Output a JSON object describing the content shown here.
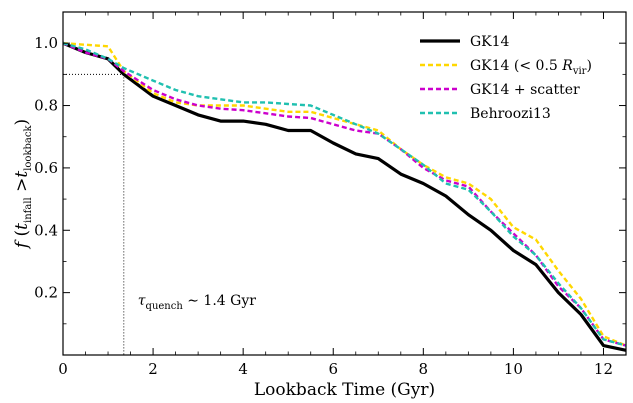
{
  "chart_data": {
    "type": "line",
    "xlabel": "Lookback Time (Gyr)",
    "ylabel": {
      "f": "f",
      "open": " (",
      "t1": "t",
      "t1_sub": "infall",
      "gt": " >",
      "t2": "t",
      "t2_sub": "lookback",
      "close": ")"
    },
    "xlim": [
      0,
      12.5
    ],
    "ylim": [
      0,
      1.1
    ],
    "xticks": [
      {
        "value": 0,
        "label": "0"
      },
      {
        "value": 2,
        "label": "2"
      },
      {
        "value": 4,
        "label": "4"
      },
      {
        "value": 6,
        "label": "6"
      },
      {
        "value": 8,
        "label": "8"
      },
      {
        "value": 10,
        "label": "10"
      },
      {
        "value": 12,
        "label": "12"
      }
    ],
    "yticks": [
      {
        "value": 0.2,
        "label": "0.2"
      },
      {
        "value": 0.4,
        "label": "0.4"
      },
      {
        "value": 0.6,
        "label": "0.6"
      },
      {
        "value": 0.8,
        "label": "0.8"
      },
      {
        "value": 1.0,
        "label": "1.0"
      }
    ],
    "grid": false,
    "legend_position": "top-right",
    "annotation": {
      "tau": "τ",
      "tau_sub": "quench",
      "rest": " ∼ 1.4 Gyr",
      "x_quench": 1.35,
      "y_level": 0.9
    },
    "series": [
      {
        "name": "GK14",
        "legend_parts": [
          "GK14"
        ],
        "color": "#000000",
        "dash": "solid",
        "x": [
          0,
          0.5,
          1.0,
          1.35,
          2.0,
          2.5,
          3.0,
          3.5,
          4.0,
          4.5,
          5.0,
          5.5,
          6.0,
          6.5,
          7.0,
          7.5,
          8.0,
          8.5,
          9.0,
          9.5,
          10.0,
          10.5,
          11.0,
          11.5,
          12.0,
          12.5
        ],
        "y": [
          1.0,
          0.97,
          0.95,
          0.9,
          0.83,
          0.8,
          0.77,
          0.75,
          0.75,
          0.74,
          0.72,
          0.72,
          0.68,
          0.645,
          0.63,
          0.58,
          0.55,
          0.51,
          0.45,
          0.4,
          0.335,
          0.29,
          0.2,
          0.13,
          0.03,
          0.015
        ]
      },
      {
        "name": "GK14 (< 0.5 R_vir)",
        "legend_parts": [
          "GK14 (",
          "< 0.5 ",
          "R",
          "vir",
          ")"
        ],
        "color": "#ffd700",
        "dash": "dashed",
        "x": [
          0,
          1.0,
          1.35,
          2.0,
          2.5,
          3.0,
          3.5,
          4.0,
          4.5,
          5.0,
          5.5,
          6.0,
          6.5,
          7.0,
          7.5,
          8.0,
          8.5,
          9.0,
          9.5,
          10.0,
          10.5,
          11.0,
          11.5,
          12.0,
          12.5
        ],
        "y": [
          1.0,
          0.99,
          0.91,
          0.84,
          0.81,
          0.8,
          0.8,
          0.8,
          0.79,
          0.78,
          0.78,
          0.76,
          0.74,
          0.72,
          0.66,
          0.61,
          0.57,
          0.55,
          0.5,
          0.41,
          0.37,
          0.27,
          0.18,
          0.06,
          0.03
        ]
      },
      {
        "name": "GK14 + scatter",
        "legend_parts": [
          "GK14 + scatter"
        ],
        "color": "#cc00cc",
        "dash": "dashed",
        "x": [
          0,
          0.5,
          1.0,
          1.35,
          2.0,
          2.5,
          3.0,
          3.5,
          4.0,
          4.5,
          5.0,
          5.5,
          6.0,
          6.5,
          7.0,
          7.5,
          8.0,
          8.5,
          9.0,
          9.5,
          10.0,
          10.5,
          11.0,
          11.5,
          12.0,
          12.5
        ],
        "y": [
          1.0,
          0.97,
          0.95,
          0.91,
          0.85,
          0.82,
          0.8,
          0.79,
          0.785,
          0.775,
          0.765,
          0.76,
          0.74,
          0.72,
          0.71,
          0.66,
          0.6,
          0.56,
          0.54,
          0.46,
          0.39,
          0.32,
          0.22,
          0.15,
          0.05,
          0.03
        ]
      },
      {
        "name": "Behroozi13",
        "legend_parts": [
          "Behroozi13"
        ],
        "color": "#20c0b0",
        "dash": "dashed",
        "x": [
          0,
          0.5,
          1.0,
          1.35,
          2.0,
          2.5,
          3.0,
          3.5,
          4.0,
          4.5,
          5.0,
          5.5,
          6.0,
          6.5,
          7.0,
          7.5,
          8.0,
          8.5,
          9.0,
          9.5,
          10.0,
          10.5,
          11.0,
          11.5,
          12.0,
          12.5
        ],
        "y": [
          1.0,
          0.98,
          0.95,
          0.92,
          0.88,
          0.85,
          0.83,
          0.82,
          0.81,
          0.81,
          0.805,
          0.8,
          0.77,
          0.74,
          0.71,
          0.66,
          0.61,
          0.55,
          0.53,
          0.46,
          0.38,
          0.32,
          0.23,
          0.15,
          0.05,
          0.03
        ]
      }
    ]
  }
}
